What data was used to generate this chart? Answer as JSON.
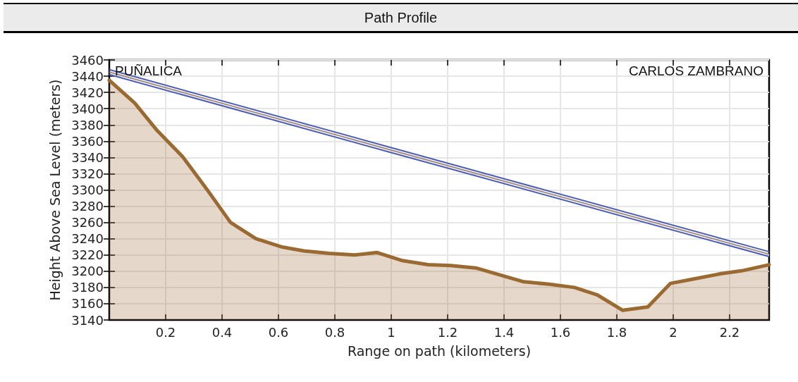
{
  "chart_data": {
    "type": "area",
    "title": "Path Profile",
    "xlabel": "Range on path (kilometers)",
    "ylabel": "Height Above Sea Level (meters)",
    "annotations": [
      "PUÑALICA",
      "CARLOS ZAMBRANO"
    ],
    "x": [
      0,
      0.09,
      0.17,
      0.26,
      0.35,
      0.43,
      0.52,
      0.61,
      0.69,
      0.78,
      0.87,
      0.95,
      1.04,
      1.13,
      1.21,
      1.3,
      1.39,
      1.47,
      1.56,
      1.65,
      1.73,
      1.82,
      1.91,
      1.99,
      2.08,
      2.17,
      2.25,
      2.34
    ],
    "series": [
      {
        "color": "#9b6a32",
        "values": [
          3435,
          3407,
          3373,
          3341,
          3299,
          3260,
          3240,
          3230,
          3225,
          3222,
          3220,
          3223,
          3213,
          3208,
          3207,
          3204,
          3195,
          3187,
          3184,
          3180,
          3171,
          3152,
          3156,
          3185,
          3191,
          3197,
          3201,
          3208
        ]
      },
      {
        "type": "line",
        "color": "#4b5cb3",
        "x": [
          0,
          1,
          2.34
        ],
        "values": [
          3448,
          3352,
          3224
        ]
      },
      {
        "type": "line",
        "color": "#a08c84",
        "x": [
          0,
          1,
          2.34
        ],
        "values": [
          3445,
          3349,
          3221
        ]
      },
      {
        "type": "line",
        "color": "#4b5cb3",
        "x": [
          0,
          1,
          2.34
        ],
        "values": [
          3442,
          3346,
          3218
        ]
      }
    ],
    "xlim": [
      0,
      2.34
    ],
    "xticks": [
      0.2,
      0.4,
      0.6,
      0.8,
      1,
      1.2,
      1.4,
      1.6,
      1.8,
      2,
      2.2
    ],
    "ylim": [
      3140,
      3460
    ],
    "yticks": [
      3140,
      3160,
      3180,
      3200,
      3220,
      3240,
      3260,
      3280,
      3300,
      3320,
      3340,
      3360,
      3380,
      3400,
      3420,
      3440,
      3460
    ],
    "grid": true
  }
}
